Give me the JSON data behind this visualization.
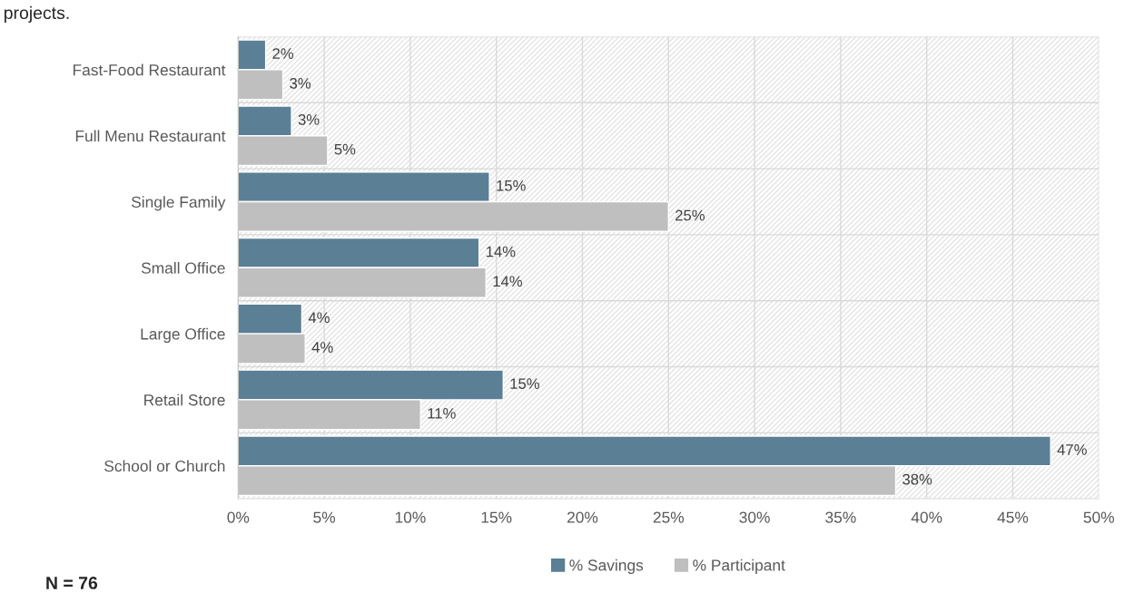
{
  "chart_data": {
    "type": "bar",
    "orientation": "horizontal",
    "categories": [
      "Fast-Food Restaurant",
      "Full Menu Restaurant",
      "Single Family",
      "Small Office",
      "Large Office",
      "Retail Store",
      "School or Church"
    ],
    "series": [
      {
        "name": "% Savings",
        "color": "#5b7f95",
        "values": [
          1.6,
          3.1,
          14.6,
          14.0,
          3.7,
          15.4,
          47.2
        ],
        "value_labels": [
          "2%",
          "3%",
          "15%",
          "14%",
          "4%",
          "15%",
          "47%"
        ]
      },
      {
        "name": "% Participant",
        "color": "#bfbfbf",
        "values": [
          2.6,
          5.2,
          25.0,
          14.4,
          3.9,
          10.6,
          38.2
        ],
        "value_labels": [
          "3%",
          "5%",
          "25%",
          "14%",
          "4%",
          "11%",
          "38%"
        ]
      }
    ],
    "xlim": [
      0,
      50
    ],
    "xticks": [
      {
        "value": 0,
        "label": "0%"
      },
      {
        "value": 5,
        "label": "5%"
      },
      {
        "value": 10,
        "label": "10%"
      },
      {
        "value": 15,
        "label": "15%"
      },
      {
        "value": 20,
        "label": "20%"
      },
      {
        "value": 25,
        "label": "25%"
      },
      {
        "value": 30,
        "label": "30%"
      },
      {
        "value": 35,
        "label": "35%"
      },
      {
        "value": 40,
        "label": "40%"
      },
      {
        "value": 45,
        "label": "45%"
      },
      {
        "value": 50,
        "label": "50%"
      }
    ],
    "grid": "x",
    "legend": "bottom",
    "annotations": [
      "projects.",
      "N = 76"
    ]
  }
}
